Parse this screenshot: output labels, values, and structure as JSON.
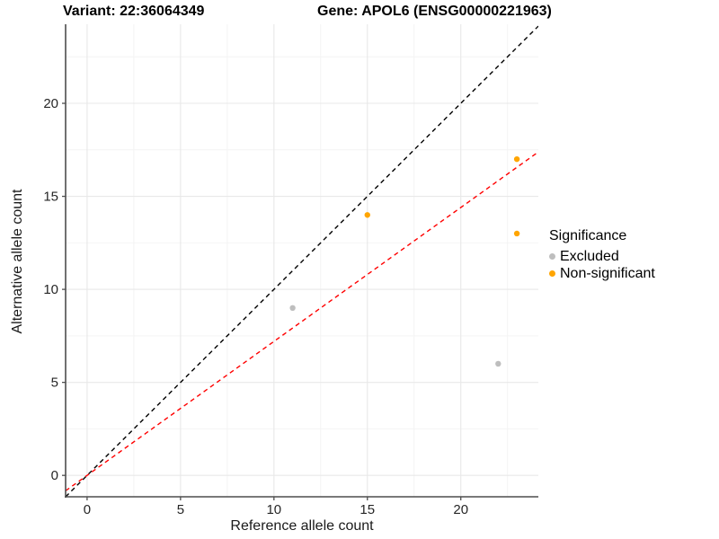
{
  "header": {
    "title_variant": "Variant: 22:36064349",
    "title_gene": "Gene: APOL6 (ENSG00000221963)"
  },
  "chart_data": {
    "type": "scatter",
    "xlabel": "Reference allele count",
    "ylabel": "Alternative allele count",
    "xlim": [
      -1.15,
      24.15
    ],
    "ylim": [
      -1.15,
      24.25
    ],
    "xticks": [
      0,
      5,
      10,
      15,
      20
    ],
    "yticks": [
      0,
      5,
      10,
      15,
      20
    ],
    "minor_offset": 2.5,
    "grid": true,
    "colors": {
      "major_grid": "#e8e8e8",
      "minor_grid": "#f4f4f4",
      "axis_line": "#4d4d4d",
      "tick_label": "#262626"
    },
    "series": [
      {
        "name": "Excluded",
        "color": "#bebebe",
        "points": [
          [
            11,
            9
          ],
          [
            22,
            6
          ]
        ]
      },
      {
        "name": "Non-significant",
        "color": "#ffa500",
        "points": [
          [
            15,
            14
          ],
          [
            23,
            17
          ],
          [
            23,
            13
          ]
        ]
      }
    ],
    "lines": [
      {
        "name": "identity-line",
        "color": "#000000",
        "slope": 1.0,
        "intercept": 0,
        "dashed": true
      },
      {
        "name": "expected-ratio-line",
        "color": "#ff0000",
        "slope": 0.72,
        "intercept": 0,
        "dashed": true
      }
    ],
    "legend": {
      "title": "Significance",
      "position": "right"
    }
  }
}
